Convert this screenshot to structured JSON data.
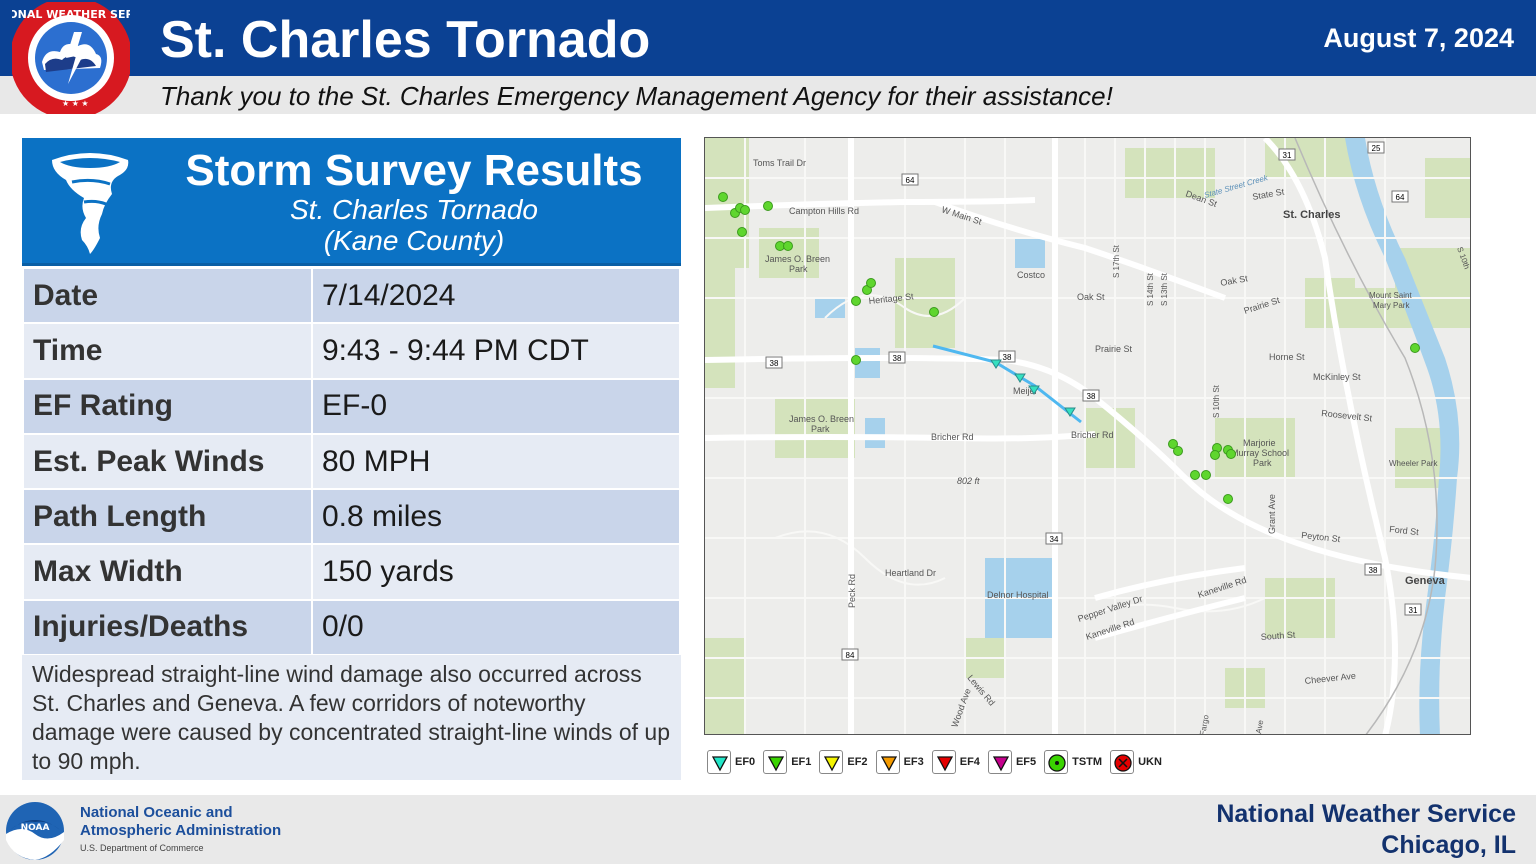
{
  "header": {
    "title": "St. Charles Tornado",
    "date": "August 7, 2024",
    "thanks": "Thank you to the St. Charles Emergency Management Agency for their assistance!",
    "logo_text": "NATIONAL WEATHER SERVICE",
    "logo_icon": "nws-logo-icon"
  },
  "survey": {
    "title": "Storm Survey Results",
    "subtitle": "St. Charles Tornado",
    "county": "(Kane County)",
    "icon": "tornado-icon",
    "rows": [
      {
        "label": "Date",
        "value": "7/14/2024"
      },
      {
        "label": "Time",
        "value": "9:43 - 9:44 PM CDT"
      },
      {
        "label": "EF Rating",
        "value": "EF-0"
      },
      {
        "label": "Est. Peak Winds",
        "value": "80 MPH"
      },
      {
        "label": "Path Length",
        "value": "0.8 miles"
      },
      {
        "label": "Max Width",
        "value": "150 yards"
      },
      {
        "label": "Injuries/Deaths",
        "value": "0/0"
      }
    ],
    "note": "Widespread straight-line wind damage also occurred across St. Charles and Geneva. A few corridors of noteworthy damage were caused by concentrated straight-line winds of up to 90 mph."
  },
  "map": {
    "labels": {
      "toms_trail": "Toms Trail Dr",
      "campton_hills": "Campton Hills Rd",
      "w_main": "W Main St",
      "james_breen_1": "James O. Breen",
      "park_1": "Park",
      "heritage": "Heritage St",
      "costco": "Costco",
      "oak_st_1": "Oak St",
      "oak_st_2": "Oak St",
      "prairie_1": "Prairie St",
      "prairie_2": "Prairie St",
      "meijer": "Meijer",
      "james_breen_2": "James O. Breen",
      "park_2": "Park",
      "bricher_1": "Bricher Rd",
      "bricher_2": "Bricher Rd",
      "elevation": "802 ft",
      "heartland": "Heartland Dr",
      "peck": "Peck Rd",
      "delnor": "Delnor Hospital",
      "pepper_valley": "Pepper Valley Dr",
      "kaneville_1": "Kaneville Rd",
      "kaneville_2": "Kaneville Rd",
      "lewis": "Lewis Rd",
      "wood": "Wood Ave",
      "st_charles": "St. Charles",
      "state_st": "State St",
      "dean_st": "Dean St",
      "state_street_creek": "State Street Creek",
      "horne": "Horne St",
      "mckinley": "McKinley St",
      "roosevelt": "Roosevelt St",
      "marjorie_1": "Marjorie",
      "marjorie_2": "Murray School",
      "marjorie_3": "Park",
      "mount_saint_1": "Mount Saint",
      "mount_saint_2": "Mary Park",
      "wheeler": "Wheeler Park",
      "peyton": "Peyton St",
      "ford": "Ford St",
      "geneva": "Geneva",
      "south_st": "South St",
      "cheever": "Cheever Ave",
      "grant": "Grant Ave",
      "s17": "S 17th St",
      "s14": "S 14th St",
      "s13": "S 13th St",
      "s10": "S 10th St",
      "fargo": "Fargo",
      "ave": "Ave",
      "s10th_right": "S 10th",
      "shield_64a": "64",
      "shield_64b": "64",
      "shield_31a": "31",
      "shield_31b": "31",
      "shield_25": "25",
      "shield_38a": "38",
      "shield_38b": "38",
      "shield_38c": "38",
      "shield_38d": "38",
      "shield_38e": "38",
      "shield_34": "34",
      "shield_84": "84"
    },
    "colors": {
      "track": "#4fb8f0",
      "damage_point": "#5fd62e",
      "ef0_marker": "#35e0c0",
      "water": "#9ccdea",
      "park": "#cfe0b4"
    }
  },
  "legend": [
    {
      "label": "EF0",
      "color": "#22e6c8",
      "shape": "triangle"
    },
    {
      "label": "EF1",
      "color": "#3ad400",
      "shape": "triangle"
    },
    {
      "label": "EF2",
      "color": "#f3f300",
      "shape": "triangle"
    },
    {
      "label": "EF3",
      "color": "#f59b00",
      "shape": "triangle"
    },
    {
      "label": "EF4",
      "color": "#e40000",
      "shape": "triangle"
    },
    {
      "label": "EF5",
      "color": "#c4008c",
      "shape": "triangle"
    },
    {
      "label": "TSTM",
      "color": "#3ad400",
      "shape": "dot"
    },
    {
      "label": "UKN",
      "color": "#e40000",
      "shape": "x"
    }
  ],
  "footer": {
    "noaa_line1": "National Oceanic and",
    "noaa_line2": "Atmospheric Administration",
    "noaa_line3": "U.S. Department of Commerce",
    "noaa_logo_text": "NOAA",
    "nws_line1": "National Weather Service",
    "nws_line2": "Chicago, IL"
  }
}
